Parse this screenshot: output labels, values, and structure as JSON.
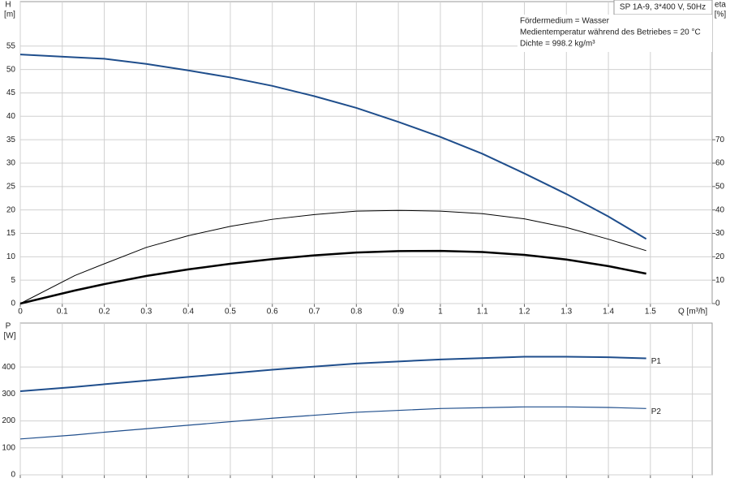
{
  "chart_data": [
    {
      "type": "line",
      "title": "SP 1A-9, 3*400 V, 50Hz",
      "annotations": [
        "Fördermedium = Wasser",
        "Medientemperatur während des Betriebes = 20 °C",
        "Dichte = 998.2 kg/m³"
      ],
      "y_label": "H",
      "y_unit": "[m]",
      "y2_label": "eta",
      "y2_unit": "[%]",
      "x_label": "Q [m³/h]",
      "x": [
        0,
        0.13,
        0.2,
        0.3,
        0.4,
        0.5,
        0.6,
        0.7,
        0.8,
        0.9,
        1.0,
        1.1,
        1.2,
        1.3,
        1.4,
        1.49
      ],
      "series": [
        {
          "color": "#1f4e8c",
          "line_width": 2,
          "values": [
            53.2,
            52.6,
            52.3,
            51.2,
            49.8,
            48.3,
            46.5,
            44.3,
            41.8,
            38.8,
            35.6,
            32,
            27.8,
            23.4,
            18.6,
            13.8
          ]
        },
        {
          "color": "#000000",
          "line_width": 1,
          "axis": "y2",
          "values": [
            0,
            12,
            17,
            24,
            29,
            33,
            36,
            38,
            39.5,
            39.8,
            39.5,
            38.4,
            36.2,
            32.5,
            27.5,
            22.6
          ]
        },
        {
          "color": "#000000",
          "line_width": 2.5,
          "axis": "y2",
          "values": [
            0,
            5.6,
            8.3,
            11.8,
            14.6,
            17,
            19,
            20.6,
            21.8,
            22.4,
            22.5,
            22,
            20.8,
            18.8,
            16,
            12.8
          ]
        }
      ],
      "xlim": [
        0,
        1.647
      ],
      "ylim": [
        0,
        64.5
      ],
      "y2lim": [
        0,
        129
      ],
      "xticks": [
        0,
        0.1,
        0.2,
        0.3,
        0.4,
        0.5,
        0.6,
        0.7,
        0.8,
        0.9,
        1.0,
        1.1,
        1.2,
        1.3,
        1.4,
        1.5
      ],
      "yticks": [
        0,
        5,
        10,
        15,
        20,
        25,
        30,
        35,
        40,
        45,
        50,
        55
      ],
      "y2ticks": [
        0,
        10,
        20,
        30,
        40,
        50,
        60,
        70
      ],
      "grid": true,
      "show_xtick_labels": true
    },
    {
      "type": "line",
      "y_label": "P",
      "y_unit": "[W]",
      "x": [
        0,
        0.13,
        0.2,
        0.4,
        0.6,
        0.8,
        1.0,
        1.2,
        1.3,
        1.4,
        1.49
      ],
      "series": [
        {
          "name": "P1",
          "color": "#1f4e8c",
          "line_width": 2,
          "values": [
            310,
            326,
            336,
            363,
            390,
            413,
            428,
            438,
            438,
            436,
            432
          ]
        },
        {
          "name": "P2",
          "color": "#1f4e8c",
          "line_width": 1.2,
          "values": [
            133,
            148,
            158,
            184,
            210,
            232,
            246,
            252,
            252,
            250,
            246
          ]
        }
      ],
      "xlim": [
        0,
        1.647
      ],
      "ylim": [
        0,
        563
      ],
      "xticks": [
        0,
        0.1,
        0.2,
        0.3,
        0.4,
        0.5,
        0.6,
        0.7,
        0.8,
        0.9,
        1.0,
        1.1,
        1.2,
        1.3,
        1.4,
        1.5,
        1.6
      ],
      "yticks": [
        0,
        100,
        200,
        300,
        400
      ],
      "grid": true,
      "show_xtick_labels": false
    }
  ]
}
